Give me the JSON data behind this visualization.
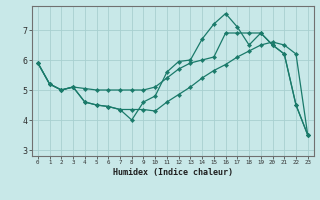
{
  "title": "",
  "xlabel": "Humidex (Indice chaleur)",
  "ylabel": "",
  "background_color": "#c8e8e8",
  "grid_color": "#a8d0d0",
  "line_color": "#1a7a6a",
  "xlim": [
    -0.5,
    23.5
  ],
  "ylim": [
    2.8,
    7.8
  ],
  "xticks": [
    0,
    1,
    2,
    3,
    4,
    5,
    6,
    7,
    8,
    9,
    10,
    11,
    12,
    13,
    14,
    15,
    16,
    17,
    18,
    19,
    20,
    21,
    22,
    23
  ],
  "yticks": [
    3,
    4,
    5,
    6,
    7
  ],
  "series": [
    [
      5.9,
      5.2,
      5.0,
      5.1,
      4.6,
      4.5,
      4.45,
      4.35,
      4.0,
      4.6,
      4.8,
      5.6,
      5.95,
      6.0,
      6.7,
      7.2,
      7.55,
      7.1,
      6.5,
      6.9,
      6.5,
      6.2,
      4.5,
      3.5
    ],
    [
      5.9,
      5.2,
      5.0,
      5.1,
      4.6,
      4.5,
      4.45,
      4.35,
      4.35,
      4.35,
      4.3,
      4.6,
      4.85,
      5.1,
      5.4,
      5.65,
      5.85,
      6.1,
      6.3,
      6.5,
      6.6,
      6.5,
      6.2,
      3.5
    ],
    [
      5.9,
      5.2,
      5.0,
      5.1,
      5.05,
      5.0,
      5.0,
      5.0,
      5.0,
      5.0,
      5.1,
      5.4,
      5.7,
      5.9,
      6.0,
      6.1,
      6.9,
      6.9,
      6.9,
      6.9,
      6.5,
      6.2,
      4.5,
      3.5
    ]
  ]
}
